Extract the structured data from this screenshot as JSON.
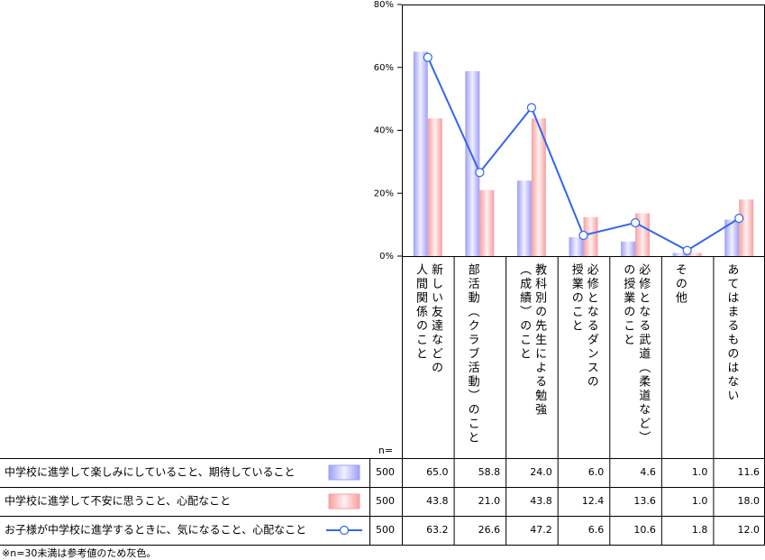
{
  "chart_data": {
    "type": "bar",
    "categories": [
      "新しい友達などの\n人間関係のこと",
      "部活動（クラブ活動）のこと",
      "教科別の先生による勉強\n（成績）のこと",
      "必修となるダンスの\n授業のこと",
      "必修となる武道（柔道など）\nの授業のこと",
      "その他",
      "あてはまるものはない"
    ],
    "n_label": "n=",
    "series": [
      {
        "name": "中学校に進学して楽しみにしていること、期待していること",
        "kind": "bar",
        "color": "#9f9ff8",
        "n": 500,
        "values": [
          65,
          58.8,
          24,
          6,
          4.6,
          1,
          11.6
        ],
        "value_labels": [
          "65.0",
          "58.8",
          "24.0",
          "6.0",
          "4.6",
          "1.0",
          "11.6"
        ]
      },
      {
        "name": "中学校に進学して不安に思うこと、心配なこと",
        "kind": "bar",
        "color": "#f89f9f",
        "n": 500,
        "values": [
          43.8,
          21,
          43.8,
          12.4,
          13.6,
          1,
          18
        ],
        "value_labels": [
          "43.8",
          "21.0",
          "43.8",
          "12.4",
          "13.6",
          "1.0",
          "18.0"
        ]
      },
      {
        "name": "お子様が中学校に進学するときに、気になること、心配なこと",
        "kind": "line",
        "color": "#3366ee",
        "n": 500,
        "values": [
          63.2,
          26.6,
          47.2,
          6.6,
          10.6,
          1.8,
          12
        ],
        "value_labels": [
          "63.2",
          "26.6",
          "47.2",
          "6.6",
          "10.6",
          "1.8",
          "12.0"
        ]
      }
    ],
    "ylim": [
      0,
      80
    ],
    "yticks": [
      {
        "value": 0,
        "label": "0%"
      },
      {
        "value": 20,
        "label": "20%"
      },
      {
        "value": 40,
        "label": "40%"
      },
      {
        "value": 60,
        "label": "60%"
      },
      {
        "value": 80,
        "label": "80%"
      }
    ],
    "footnote": "※n=30未満は参考値のため灰色。"
  }
}
